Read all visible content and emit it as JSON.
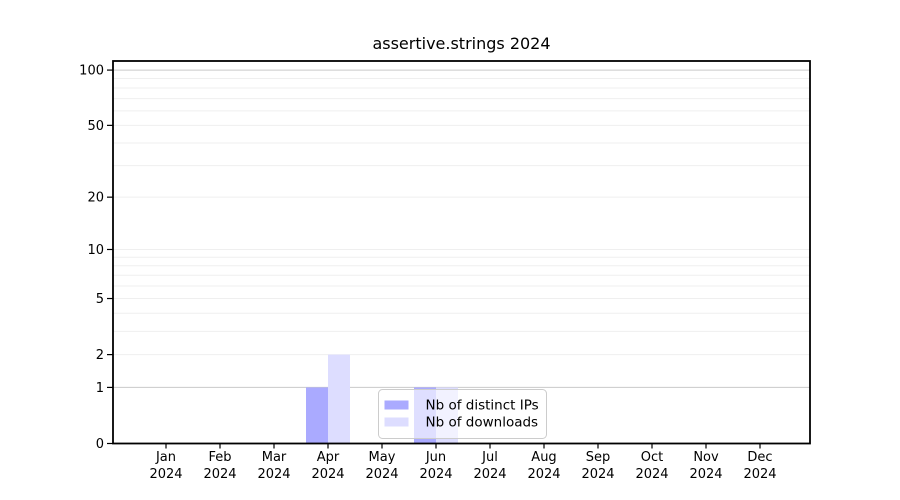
{
  "chart_data": {
    "type": "bar",
    "title": "assertive.strings 2024",
    "categories": [
      "Jan 2024",
      "Feb 2024",
      "Mar 2024",
      "Apr 2024",
      "May 2024",
      "Jun 2024",
      "Jul 2024",
      "Aug 2024",
      "Sep 2024",
      "Oct 2024",
      "Nov 2024",
      "Dec 2024"
    ],
    "x_tick_top": [
      "Jan",
      "Feb",
      "Mar",
      "Apr",
      "May",
      "Jun",
      "Jul",
      "Aug",
      "Sep",
      "Oct",
      "Nov",
      "Dec"
    ],
    "x_tick_bottom": [
      "2024",
      "2024",
      "2024",
      "2024",
      "2024",
      "2024",
      "2024",
      "2024",
      "2024",
      "2024",
      "2024",
      "2024"
    ],
    "series": [
      {
        "name": "Nb of distinct IPs",
        "color": "#aaaaff",
        "values": [
          0,
          0,
          0,
          1,
          0,
          1,
          0,
          0,
          0,
          0,
          0,
          0
        ]
      },
      {
        "name": "Nb of downloads",
        "color": "#ddddff",
        "values": [
          0,
          0,
          0,
          2,
          0,
          1,
          0,
          0,
          0,
          0,
          0,
          0
        ]
      }
    ],
    "y_axis": {
      "scale": "log1p",
      "ticks": [
        0,
        1,
        2,
        5,
        10,
        20,
        50,
        100
      ],
      "gridlines_minor": [
        2,
        3,
        4,
        5,
        6,
        7,
        8,
        9,
        10,
        20,
        30,
        40,
        50,
        60,
        70,
        80,
        90
      ],
      "gridlines_emphasis": [
        1,
        100
      ],
      "ylim": [
        0,
        112
      ]
    },
    "legend": {
      "position": "inside-bottom-center"
    },
    "colors": {
      "axis": "#000000",
      "text": "#000000",
      "grid_minor": "#efefef",
      "grid_emphasis": "#c9c9c9",
      "grid_top": "#c9c9c9",
      "legend_border": "#cccccc"
    }
  }
}
